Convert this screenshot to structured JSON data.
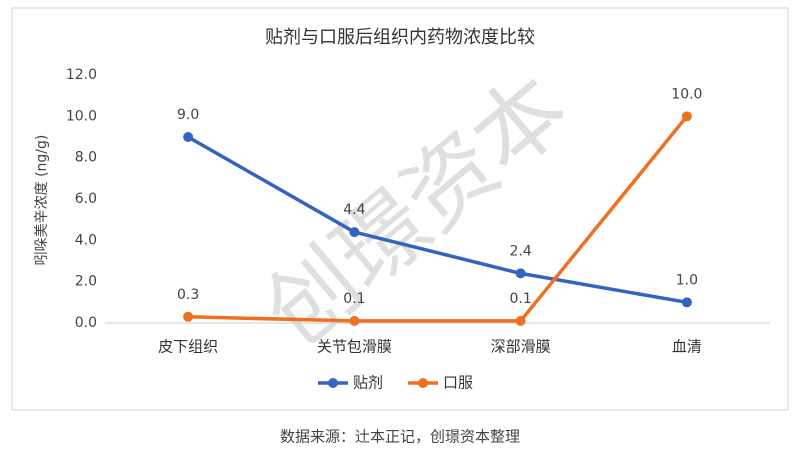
{
  "chart_data": {
    "type": "line",
    "title": "贴剂与口服后组织内药物浓度比较",
    "y_label": "吲哚美辛浓度 (ng/g)",
    "categories": [
      "皮下组织",
      "关节包滑膜",
      "深部滑膜",
      "血清"
    ],
    "series": [
      {
        "name": "贴剂",
        "color": "#3563c0",
        "values": [
          9.0,
          4.4,
          2.4,
          1.0
        ],
        "value_labels": [
          "9.0",
          "4.4",
          "2.4",
          "1.0"
        ]
      },
      {
        "name": "口服",
        "color": "#f07022",
        "values": [
          0.3,
          0.1,
          0.1,
          10.0
        ],
        "value_labels": [
          "0.3",
          "0.1",
          "0.1",
          "10.0"
        ]
      }
    ],
    "ylim": [
      0,
      12
    ],
    "yticks": [
      {
        "value": 0,
        "label": "0.0"
      },
      {
        "value": 2,
        "label": "2.0"
      },
      {
        "value": 4,
        "label": "4.0"
      },
      {
        "value": 6,
        "label": "6.0"
      },
      {
        "value": 8,
        "label": "8.0"
      },
      {
        "value": 10,
        "label": "10.0"
      },
      {
        "value": 12,
        "label": "12.0"
      }
    ],
    "grid": false,
    "legend": "bottom",
    "watermark": "创璟资本",
    "source": "数据来源：辻本正记，创璟资本整理"
  }
}
